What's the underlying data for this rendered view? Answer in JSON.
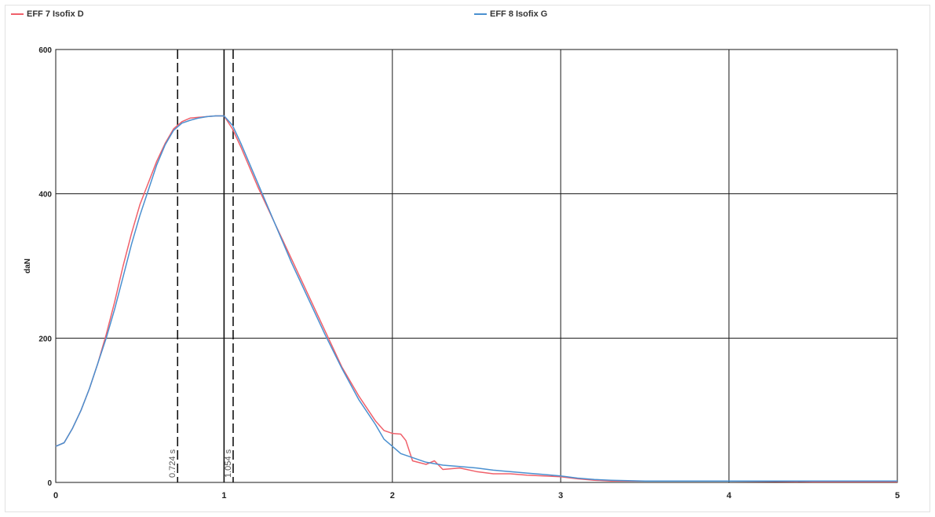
{
  "legend": {
    "series1_label": "EFF 7 Isofix D",
    "series2_label": "EFF 8 Isofix G"
  },
  "colors": {
    "series1": "#f0606a",
    "series2": "#4a90d0",
    "grid": "#1a1a1a",
    "cursor": "#111111"
  },
  "chart_data": {
    "type": "line",
    "ylabel": "daN",
    "xlabel": "",
    "xlim": [
      0,
      5
    ],
    "ylim": [
      0,
      600
    ],
    "x_ticks": [
      "0",
      "1",
      "2",
      "3",
      "4",
      "5"
    ],
    "y_ticks": [
      "0",
      "200",
      "400",
      "600"
    ],
    "grid": true,
    "legend_position": "top",
    "cursors": [
      {
        "x": 0.724,
        "label": "0.724 s",
        "style": "dashed"
      },
      {
        "x": 1.0,
        "label": "",
        "style": "solid"
      },
      {
        "x": 1.054,
        "label": "1.054 s",
        "style": "dashed"
      }
    ],
    "series": [
      {
        "name": "EFF 7 Isofix D",
        "x": [
          0,
          0.05,
          0.1,
          0.15,
          0.2,
          0.25,
          0.3,
          0.35,
          0.4,
          0.45,
          0.5,
          0.55,
          0.6,
          0.65,
          0.7,
          0.75,
          0.8,
          0.85,
          0.9,
          0.95,
          1.0,
          1.05,
          1.1,
          1.2,
          1.3,
          1.4,
          1.5,
          1.6,
          1.7,
          1.8,
          1.9,
          1.95,
          2.0,
          2.05,
          2.08,
          2.12,
          2.2,
          2.25,
          2.3,
          2.4,
          2.5,
          2.6,
          2.7,
          2.8,
          2.9,
          3.0,
          3.1,
          3.2,
          3.3,
          3.5,
          3.7,
          4.0,
          4.5,
          5.0
        ],
        "values": [
          50,
          55,
          75,
          100,
          130,
          165,
          205,
          250,
          300,
          345,
          385,
          415,
          445,
          470,
          490,
          500,
          505,
          506,
          507,
          508,
          508,
          490,
          465,
          410,
          360,
          310,
          260,
          210,
          160,
          120,
          85,
          72,
          68,
          67,
          58,
          30,
          25,
          30,
          18,
          20,
          15,
          12,
          12,
          10,
          9,
          8,
          5,
          3,
          2,
          2,
          2,
          2,
          1,
          1
        ]
      },
      {
        "name": "EFF 8 Isofix G",
        "x": [
          0,
          0.05,
          0.1,
          0.15,
          0.2,
          0.25,
          0.3,
          0.35,
          0.4,
          0.45,
          0.5,
          0.55,
          0.6,
          0.65,
          0.7,
          0.75,
          0.8,
          0.85,
          0.9,
          0.95,
          1.0,
          1.05,
          1.1,
          1.2,
          1.3,
          1.4,
          1.5,
          1.6,
          1.7,
          1.8,
          1.9,
          1.95,
          2.0,
          2.05,
          2.1,
          2.2,
          2.3,
          2.4,
          2.5,
          2.6,
          2.7,
          2.8,
          2.9,
          3.0,
          3.1,
          3.2,
          3.3,
          3.5,
          3.7,
          4.0,
          4.5,
          5.0
        ],
        "values": [
          50,
          55,
          75,
          100,
          130,
          165,
          200,
          240,
          285,
          330,
          370,
          405,
          440,
          468,
          488,
          498,
          502,
          505,
          507,
          508,
          508,
          495,
          470,
          415,
          360,
          305,
          255,
          205,
          158,
          115,
          80,
          60,
          50,
          40,
          36,
          28,
          24,
          22,
          20,
          17,
          15,
          13,
          11,
          9,
          6,
          4,
          3,
          2,
          2,
          2,
          2,
          2
        ]
      }
    ]
  }
}
